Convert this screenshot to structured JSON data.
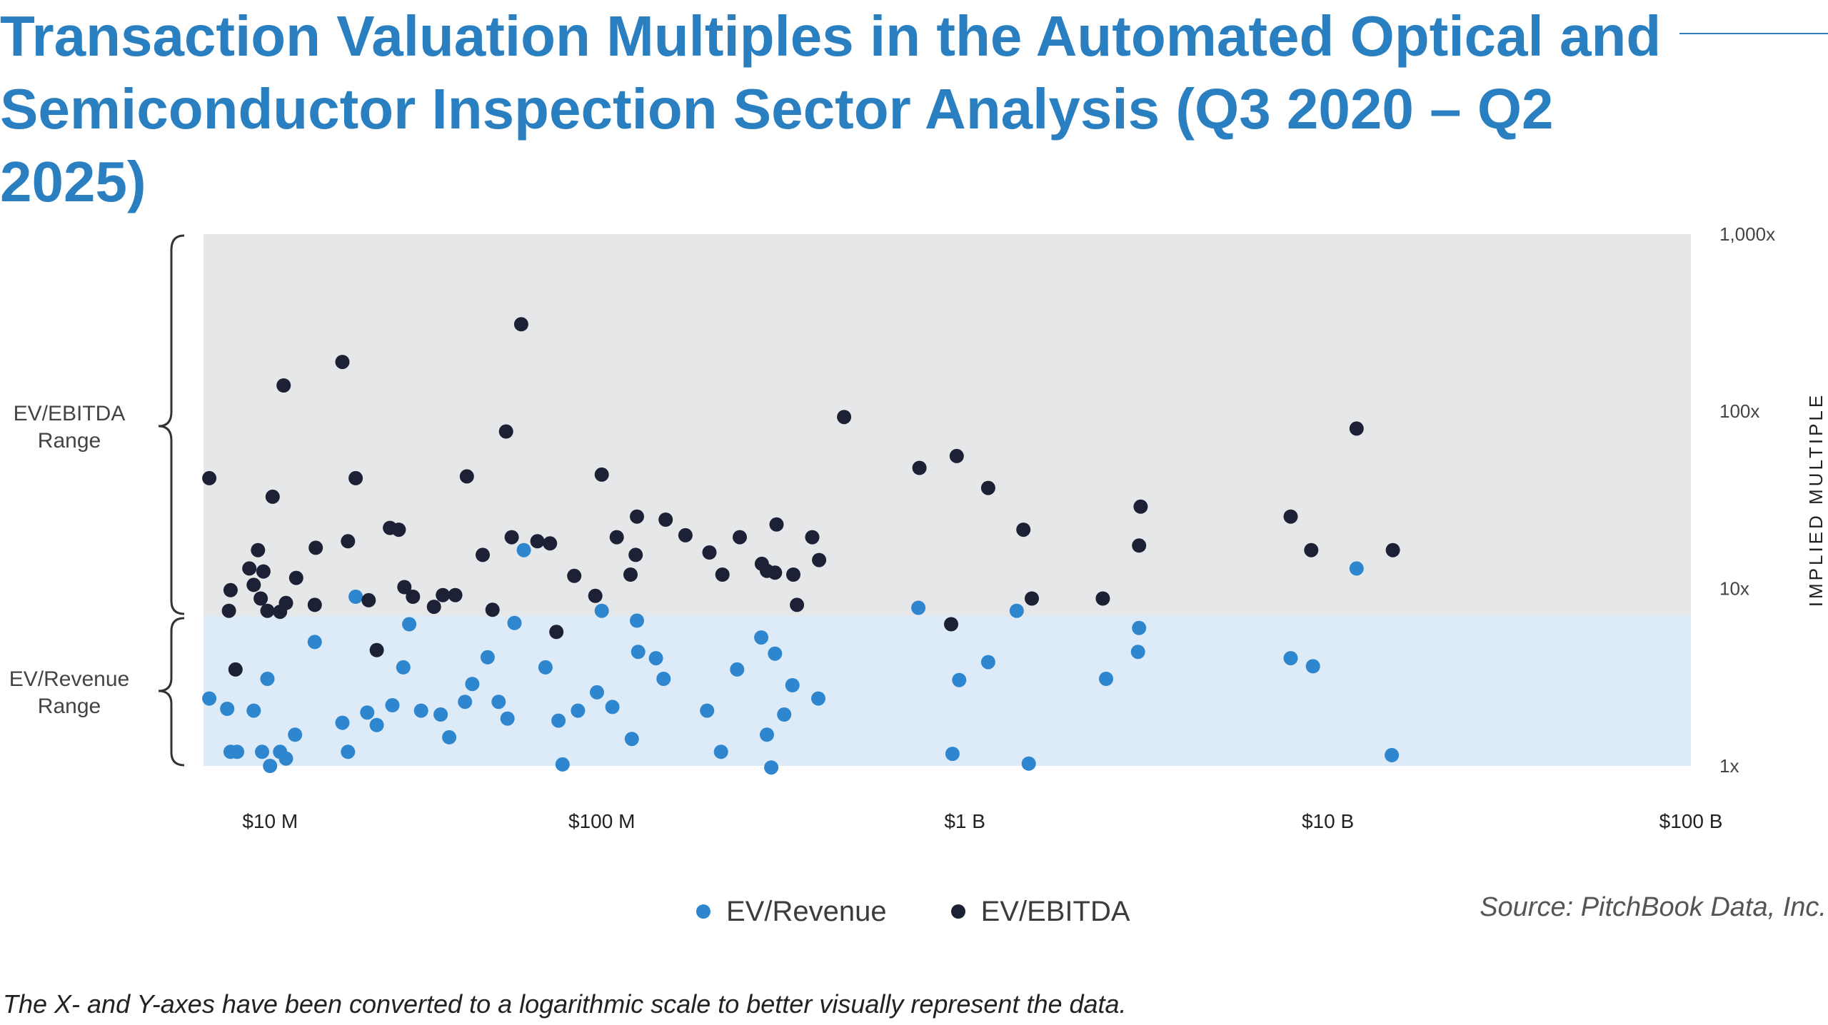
{
  "title": "Transaction Valuation Multiples in the Automated Optical and Semiconductor Inspection Sector Analysis (Q3 2020 – Q2 2025)",
  "legend": [
    {
      "label": "EV/Revenue",
      "color": "#2e86cf"
    },
    {
      "label": "EV/EBITDA",
      "color": "#1c2136"
    }
  ],
  "source": "Source: PitchBook Data, Inc.",
  "footnote": "The X- and Y-axes have been converted to a logarithmic scale to better visually represent the data.",
  "colors": {
    "title": "#2a7fc1",
    "ebitda_band": "#e6e7e9",
    "revenue_band": "#ddebf8",
    "revenue_point": "#2e86cf",
    "ebitda_point": "#1c2136"
  },
  "chart_data": {
    "type": "scatter",
    "title": "Transaction Valuation Multiples in the Automated Optical and Semiconductor Inspection Sector Analysis (Q3 2020 – Q2 2025)",
    "xlabel": "",
    "ylabel": "IMPLIED MULTIPLE",
    "x_scale": "log",
    "y_scale": "log",
    "x_range": [
      8000000,
      100000000000
    ],
    "y_range": [
      1,
      1000
    ],
    "x_ticks": [
      {
        "value": 10000000,
        "label": "$10 M"
      },
      {
        "value": 100000000,
        "label": "$100 M"
      },
      {
        "value": 1000000000,
        "label": "$1 B"
      },
      {
        "value": 10000000000,
        "label": "$10 B"
      },
      {
        "value": 100000000000,
        "label": "$100 B"
      }
    ],
    "y_ticks": [
      {
        "value": 1,
        "label": "1x"
      },
      {
        "value": 10,
        "label": "10x"
      },
      {
        "value": 100,
        "label": "100x"
      },
      {
        "value": 1000,
        "label": "1,000x"
      }
    ],
    "grid": false,
    "legend_position": "bottom-center",
    "bands": [
      {
        "label": "EV/EBITDA Range",
        "y_from": 6.8,
        "y_to": 1000
      },
      {
        "label": "EV/Revenue Range",
        "y_from": 1,
        "y_to": 6.8
      }
    ],
    "series": [
      {
        "name": "EV/Revenue",
        "points": [
          [
            8300000,
            2.4
          ],
          [
            9300000,
            2.1
          ],
          [
            9500000,
            1.2
          ],
          [
            9900000,
            1.2
          ],
          [
            11000000,
            2.05
          ],
          [
            11600000,
            1.2
          ],
          [
            12000000,
            3.1
          ],
          [
            12200000,
            1.0
          ],
          [
            13000000,
            1.2
          ],
          [
            13500000,
            1.1
          ],
          [
            14300000,
            1.5
          ],
          [
            16200000,
            5.0
          ],
          [
            19300000,
            1.75
          ],
          [
            20000000,
            1.2
          ],
          [
            21000000,
            9.0
          ],
          [
            22600000,
            2.0
          ],
          [
            24000000,
            1.7
          ],
          [
            26500000,
            2.2
          ],
          [
            28400000,
            3.6
          ],
          [
            29500000,
            6.3
          ],
          [
            31800000,
            2.05
          ],
          [
            36000000,
            1.95
          ],
          [
            38000000,
            1.45
          ],
          [
            42000000,
            2.3
          ],
          [
            44000000,
            2.9
          ],
          [
            48500000,
            4.1
          ],
          [
            52000000,
            2.3
          ],
          [
            55000000,
            1.85
          ],
          [
            57500000,
            6.4
          ],
          [
            61000000,
            16.5
          ],
          [
            70000000,
            3.6
          ],
          [
            76000000,
            1.8
          ],
          [
            78000000,
            1.02
          ],
          [
            86000000,
            2.05
          ],
          [
            97000000,
            2.6
          ],
          [
            100000000,
            7.5
          ],
          [
            107000000,
            2.15
          ],
          [
            121000000,
            1.42
          ],
          [
            125000000,
            6.6
          ],
          [
            126000000,
            4.4
          ],
          [
            141000000,
            4.05
          ],
          [
            148000000,
            3.1
          ],
          [
            195000000,
            2.05
          ],
          [
            213000000,
            1.2
          ],
          [
            236000000,
            3.5
          ],
          [
            275000000,
            5.3
          ],
          [
            285000000,
            1.5
          ],
          [
            293000000,
            0.98
          ],
          [
            300000000,
            4.3
          ],
          [
            318000000,
            1.95
          ],
          [
            335000000,
            2.85
          ],
          [
            395000000,
            2.4
          ],
          [
            745000000,
            7.8
          ],
          [
            925000000,
            1.17
          ],
          [
            965000000,
            3.05
          ],
          [
            1160000000,
            3.85
          ],
          [
            1390000000,
            7.5
          ],
          [
            1500000000,
            1.03
          ],
          [
            2450000000,
            3.1
          ],
          [
            3000000000,
            4.4
          ],
          [
            3020000000,
            6.0
          ],
          [
            7900000000,
            4.05
          ],
          [
            9100000000,
            3.65
          ],
          [
            12000000000,
            13.0
          ],
          [
            15000000000,
            1.15
          ]
        ]
      },
      {
        "name": "EV/EBITDA",
        "points": [
          [
            8300000,
            42
          ],
          [
            9400000,
            7.5
          ],
          [
            9500000,
            9.8
          ],
          [
            9800000,
            3.5
          ],
          [
            10700000,
            13.0
          ],
          [
            11000000,
            10.5
          ],
          [
            11300000,
            16.5
          ],
          [
            11500000,
            8.8
          ],
          [
            11700000,
            12.5
          ],
          [
            12000000,
            7.5
          ],
          [
            12400000,
            33
          ],
          [
            13000000,
            7.4
          ],
          [
            13300000,
            140
          ],
          [
            13500000,
            8.3
          ],
          [
            14400000,
            11.5
          ],
          [
            16200000,
            8.1
          ],
          [
            16300000,
            17
          ],
          [
            19300000,
            190
          ],
          [
            20000000,
            18.5
          ],
          [
            21000000,
            42
          ],
          [
            22800000,
            8.6
          ],
          [
            24000000,
            4.5
          ],
          [
            26100000,
            22
          ],
          [
            27600000,
            21.5
          ],
          [
            28600000,
            10.2
          ],
          [
            30200000,
            9.0
          ],
          [
            34500000,
            7.9
          ],
          [
            36500000,
            9.2
          ],
          [
            39500000,
            9.2
          ],
          [
            42500000,
            43
          ],
          [
            47000000,
            15.5
          ],
          [
            50000000,
            7.6
          ],
          [
            54500000,
            77
          ],
          [
            56500000,
            19.5
          ],
          [
            60000000,
            310
          ],
          [
            66500000,
            18.5
          ],
          [
            72000000,
            18.0
          ],
          [
            75000000,
            5.7
          ],
          [
            84000000,
            11.8
          ],
          [
            96000000,
            9.1
          ],
          [
            100000000,
            44
          ],
          [
            110000000,
            19.5
          ],
          [
            120000000,
            12.0
          ],
          [
            124000000,
            15.5
          ],
          [
            125000000,
            25.5
          ],
          [
            150000000,
            24.5
          ],
          [
            170000000,
            20.0
          ],
          [
            198000000,
            16.0
          ],
          [
            215000000,
            12.0
          ],
          [
            240000000,
            19.5
          ],
          [
            276000000,
            13.8
          ],
          [
            285000000,
            12.6
          ],
          [
            300000000,
            12.3
          ],
          [
            303000000,
            23.0
          ],
          [
            337000000,
            12.0
          ],
          [
            345000000,
            8.1
          ],
          [
            380000000,
            19.5
          ],
          [
            397000000,
            14.5
          ],
          [
            465000000,
            93
          ],
          [
            750000000,
            48
          ],
          [
            917000000,
            6.3
          ],
          [
            950000000,
            56
          ],
          [
            1160000000,
            37
          ],
          [
            1450000000,
            21.5
          ],
          [
            1530000000,
            8.8
          ],
          [
            2400000000,
            8.8
          ],
          [
            3020000000,
            17.5
          ],
          [
            3050000000,
            29
          ],
          [
            7900000000,
            25.5
          ],
          [
            9000000000,
            16.5
          ],
          [
            12000000000,
            80
          ],
          [
            15100000000,
            16.5
          ]
        ]
      }
    ]
  },
  "axes": {
    "left_labels": [
      "EV/EBITDA",
      "Range",
      "EV/Revenue",
      "Range"
    ]
  }
}
